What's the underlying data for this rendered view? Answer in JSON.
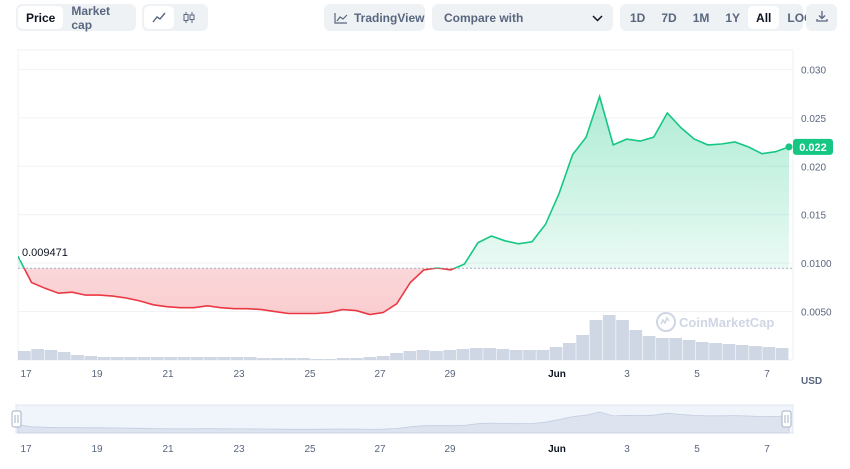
{
  "toolbar": {
    "metric_tabs": [
      "Price",
      "Market cap"
    ],
    "active_metric": "Price",
    "chart_type_icons": [
      "line-chart-icon",
      "candlestick-icon"
    ],
    "tradingview_label": "TradingView",
    "compare_label": "Compare with",
    "ranges": [
      "1D",
      "7D",
      "1M",
      "1Y",
      "All",
      "LOG"
    ],
    "active_range": "All",
    "download_icon": "download-icon"
  },
  "chart_data": {
    "type": "line",
    "y_unit_label": "USD",
    "y_ticks": [
      "0.030",
      "0.025",
      "0.020",
      "0.015",
      "0.0100",
      "0.0050"
    ],
    "ylim": [
      0,
      0.032
    ],
    "x_ticks": [
      "17",
      "19",
      "21",
      "23",
      "25",
      "27",
      "29",
      "Jun",
      "3",
      "5",
      "7"
    ],
    "baseline_value": 0.009471,
    "baseline_label": "0.009471",
    "current_value": 0.022,
    "current_label": "0.022",
    "watermark": "CoinMarketCap",
    "colors": {
      "up": "#16c784",
      "down": "#ea3943",
      "volume": "#cfd6e4"
    },
    "series": [
      {
        "values": [
          0.0107,
          0.008,
          0.0074,
          0.0069,
          0.007,
          0.0067,
          0.0067,
          0.0066,
          0.0064,
          0.0061,
          0.0057,
          0.0055,
          0.0054,
          0.0054,
          0.0056,
          0.0054,
          0.0053,
          0.0053,
          0.0052,
          0.005,
          0.0048,
          0.0048,
          0.0048,
          0.0049,
          0.0052,
          0.0051,
          0.0047,
          0.0049,
          0.0058,
          0.008,
          0.0093,
          0.0095,
          0.0093,
          0.0099,
          0.0121,
          0.0128,
          0.0123,
          0.012,
          0.0122,
          0.014,
          0.0172,
          0.0212,
          0.023,
          0.0272,
          0.0222,
          0.0228,
          0.0226,
          0.023,
          0.0255,
          0.024,
          0.0228,
          0.0222,
          0.0223,
          0.0225,
          0.022,
          0.0213,
          0.0215,
          0.022
        ]
      }
    ],
    "volume": [
      9,
      11,
      10,
      8,
      5,
      4,
      3,
      3,
      3,
      3,
      3,
      3,
      3,
      3,
      3,
      3,
      3,
      3,
      2,
      2,
      2,
      2,
      1,
      1,
      2,
      2,
      3,
      4,
      7,
      9,
      10,
      9,
      10,
      11,
      12,
      12,
      11,
      10,
      10,
      10,
      13,
      17,
      25,
      40,
      45,
      40,
      30,
      24,
      22,
      22,
      20,
      18,
      17,
      16,
      15,
      14,
      13,
      12
    ]
  },
  "navigator": {
    "x_ticks": [
      "17",
      "19",
      "21",
      "23",
      "25",
      "27",
      "29",
      "Jun",
      "3",
      "5",
      "7"
    ]
  }
}
